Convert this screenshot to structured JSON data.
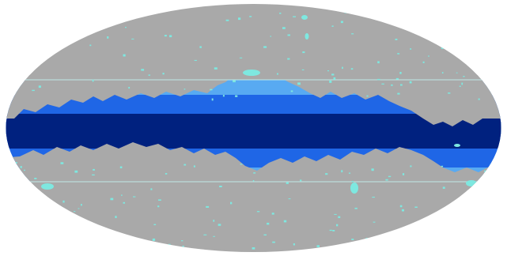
{
  "map": {
    "projection": "mollweide",
    "colors": {
      "background": "#ffffff",
      "sky": "#a9a9a9",
      "band_outer": "#58aaf2",
      "band_mid": "#1f66e6",
      "band_inner": "#00217f",
      "speckle": "#7ee8e0",
      "boundary_lines": "#bfe9e6"
    },
    "regions": [
      {
        "name": "galactic-plane-band-inner",
        "color_key": "band_inner"
      },
      {
        "name": "galactic-plane-band-mid",
        "color_key": "band_mid"
      },
      {
        "name": "galactic-plane-band-outer",
        "color_key": "band_outer"
      },
      {
        "name": "sky-mask-gray",
        "color_key": "sky"
      },
      {
        "name": "point-source-speckles",
        "color_key": "speckle"
      }
    ]
  }
}
